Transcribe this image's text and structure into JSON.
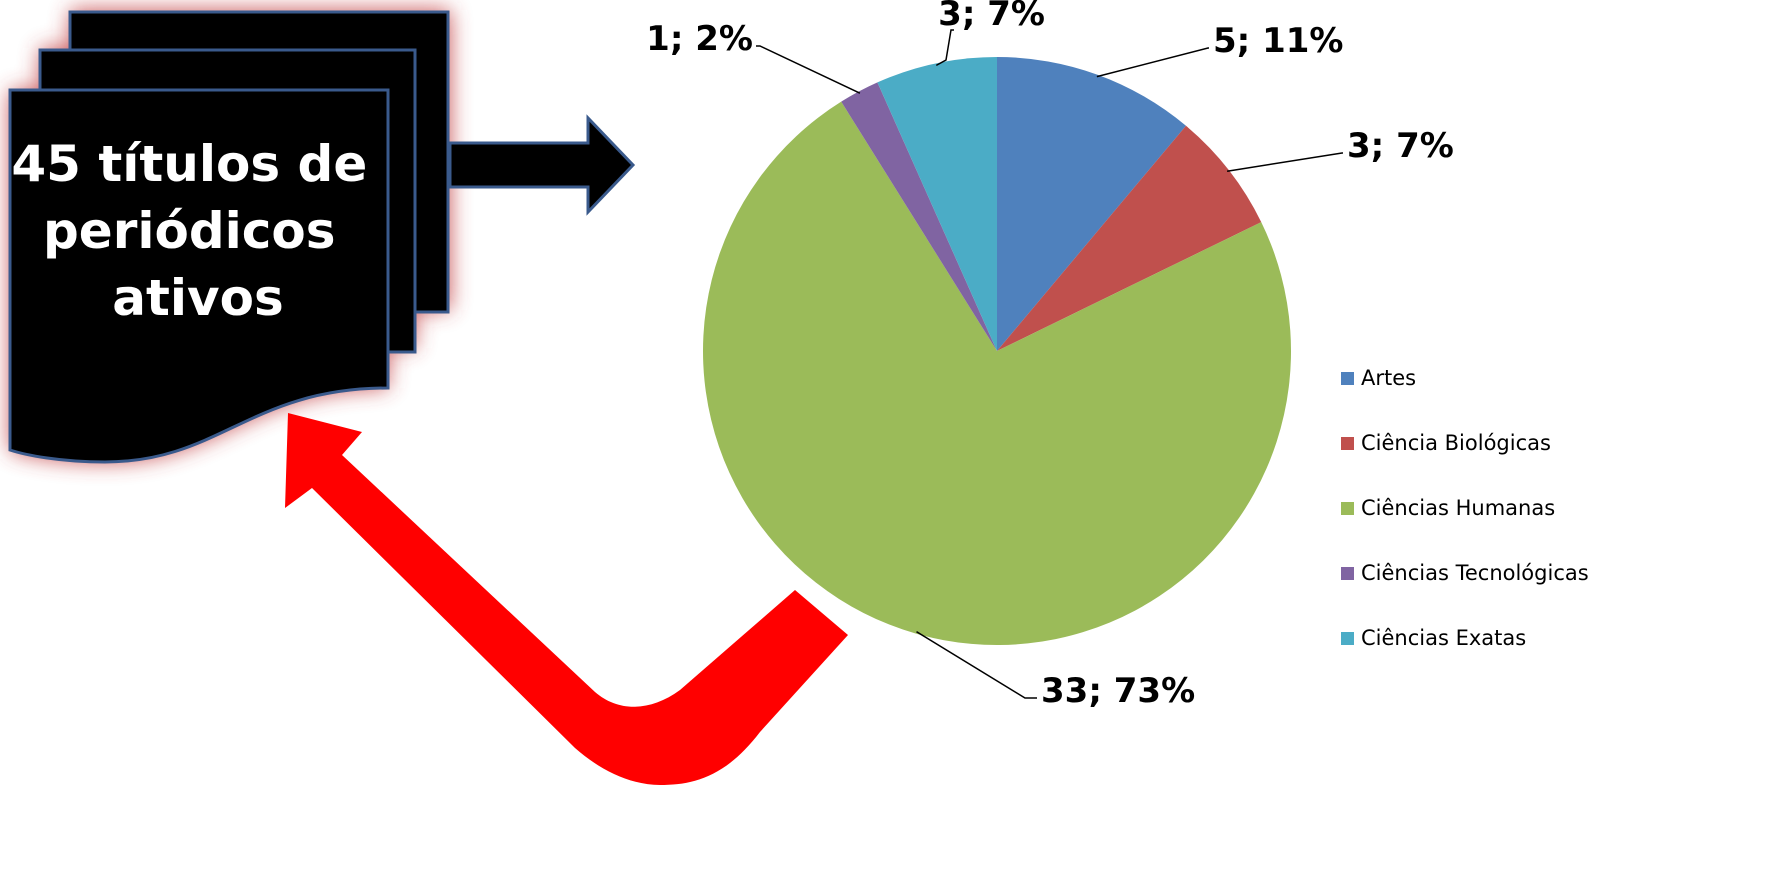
{
  "callout": {
    "title_lines": [
      "45 títulos de",
      "periódicos",
      "ativos"
    ]
  },
  "colors": {
    "document_fill": "#000000",
    "document_border": "#3a5a8c",
    "glow": "#c0393b",
    "arrow_fill": "#000000",
    "return_arrow": "#ff0000"
  },
  "chart_data": {
    "type": "pie",
    "title": "",
    "label_format": "value; percent",
    "legend_position": "right",
    "slices": [
      {
        "name": "Artes",
        "value": 5,
        "percent": "11%",
        "label": "5; 11%",
        "color": "#4f81bd"
      },
      {
        "name": "Ciência Biológicas",
        "value": 3,
        "percent": "7%",
        "label": "3; 7%",
        "color": "#c0504d"
      },
      {
        "name": "Ciências Humanas",
        "value": 33,
        "percent": "73%",
        "label": "33; 73%",
        "color": "#9bbb59"
      },
      {
        "name": "Ciências Tecnológicas",
        "value": 1,
        "percent": "2%",
        "label": "1; 2%",
        "color": "#8064a2"
      },
      {
        "name": "Ciências Exatas",
        "value": 3,
        "percent": "7%",
        "label": "3; 7%",
        "color": "#4bacc6"
      }
    ]
  }
}
